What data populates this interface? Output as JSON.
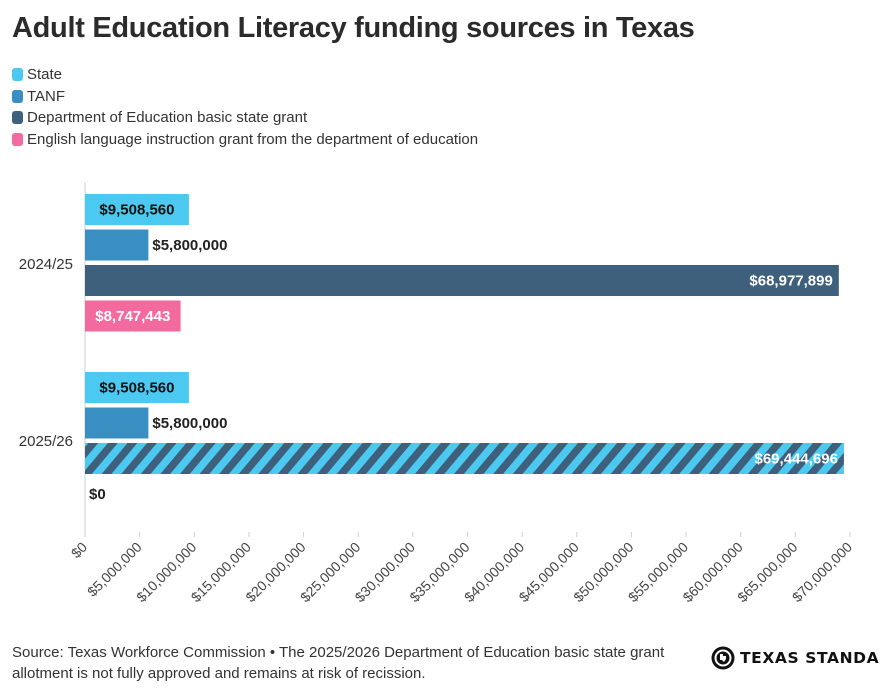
{
  "chart_data": {
    "type": "bar",
    "orientation": "horizontal",
    "title": "Adult Education Literacy funding sources in Texas",
    "categories": [
      "2024/25",
      "2025/26"
    ],
    "series": [
      {
        "name": "State",
        "color": "#4cc9f0",
        "values": [
          9508560,
          9508560
        ],
        "labels": [
          "$9,508,560",
          "$9,508,560"
        ]
      },
      {
        "name": "TANF",
        "color": "#3a8fc2",
        "values": [
          5800000,
          5800000
        ],
        "labels": [
          "$5,800,000",
          "$5,800,000"
        ]
      },
      {
        "name": "Department of Education basic state grant",
        "color": "#3f607c",
        "values": [
          68977899,
          69444696
        ],
        "labels": [
          "$68,977,899",
          "$69,444,696"
        ],
        "hatched": [
          false,
          true
        ]
      },
      {
        "name": "English language instruction grant from the department of education",
        "color": "#f26a9e",
        "values": [
          8747443,
          0
        ],
        "labels": [
          "$8,747,443",
          "$0"
        ]
      }
    ],
    "xlim": [
      0,
      70000000
    ],
    "xticks": [
      0,
      5000000,
      10000000,
      15000000,
      20000000,
      25000000,
      30000000,
      35000000,
      40000000,
      45000000,
      50000000,
      55000000,
      60000000,
      65000000,
      70000000
    ],
    "xtick_labels": [
      "$0",
      "$5,000,000",
      "$10,000,000",
      "$15,000,000",
      "$20,000,000",
      "$25,000,000",
      "$30,000,000",
      "$35,000,000",
      "$40,000,000",
      "$45,000,000",
      "$50,000,000",
      "$55,000,000",
      "$60,000,000",
      "$65,000,000",
      "$70,000,000"
    ],
    "legend_position": "top-left",
    "grid": false
  },
  "footer": {
    "source": "Source: Texas Workforce Commission • The 2025/2026 Department of Education basic state grant allotment is not fully approved and remains at risk of recission.",
    "brand": "TEXAS STANDARD"
  }
}
